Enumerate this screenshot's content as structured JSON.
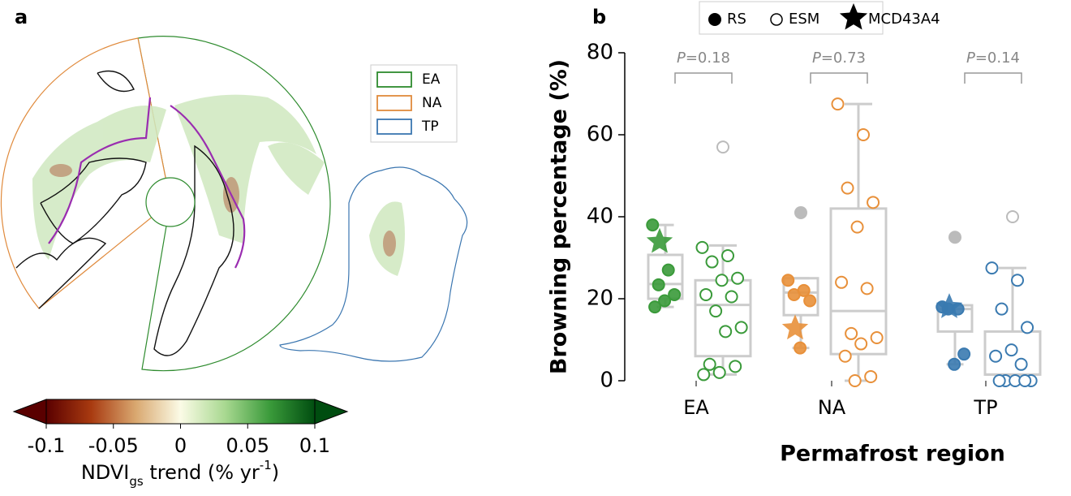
{
  "chart_data": [
    {
      "type": "map",
      "panel_label": "a",
      "legend": [
        {
          "name": "EA",
          "color": "#2e8b2e"
        },
        {
          "name": "NA",
          "color": "#e08a3c"
        },
        {
          "name": "TP",
          "color": "#3b76b0"
        }
      ],
      "colorbar": {
        "xlim": [
          -0.1,
          0.1
        ],
        "xticks": [
          -0.1,
          -0.05,
          0,
          0.05,
          0.1
        ],
        "colors": [
          "#5a0000",
          "#a83a10",
          "#d9a870",
          "#fbfbe6",
          "#a8d890",
          "#3a9a3a",
          "#004d10"
        ],
        "label": {
          "base": "NDVI",
          "sub": "gs",
          "mid": " trend (% yr",
          "sup": "-1",
          "end": ")"
        }
      }
    },
    {
      "type": "box",
      "panel_label": "b",
      "ylabel": "Browning percentage (%)",
      "xlabel": "Permafrost region",
      "ylim": [
        0,
        80
      ],
      "yticks": [
        0,
        20,
        40,
        60,
        80
      ],
      "categories": [
        "EA",
        "NA",
        "TP"
      ],
      "colors": [
        "#3a9a3a",
        "#e8903a",
        "#3a7ab0"
      ],
      "flier_color": "#bbbbbb",
      "legend": {
        "rs": "RS",
        "esm": "ESM",
        "star": "MCD43A4"
      },
      "p_symbol": "P",
      "p_texts": [
        "=0.18",
        "=0.73",
        "=0.14"
      ],
      "rs": [
        {
          "q1": 20,
          "median": 23.6,
          "q3": 30.7,
          "whislo": 18,
          "whishi": 38,
          "points": [
            38,
            27,
            23.4,
            21,
            19.5,
            18
          ],
          "fliers": []
        },
        {
          "q1": 16,
          "median": 21.5,
          "q3": 25,
          "whislo": 8,
          "whishi": 25,
          "points": [
            24.5,
            22,
            21,
            19.5,
            8
          ],
          "fliers": [
            41
          ]
        },
        {
          "q1": 12,
          "median": 17.5,
          "q3": 18.4,
          "whislo": 4,
          "whishi": 18.4,
          "points": [
            18,
            17.5,
            17.5,
            6.5,
            4
          ],
          "fliers": [
            35
          ]
        }
      ],
      "esm": [
        {
          "q1": 6,
          "median": 18.5,
          "q3": 24.5,
          "whislo": 1.5,
          "whishi": 33,
          "points": [
            32.5,
            30.5,
            29,
            25,
            24.5,
            21,
            20.5,
            17,
            13,
            12,
            4,
            3.5,
            2,
            1.5
          ],
          "fliers": [
            57
          ]
        },
        {
          "q1": 6.5,
          "median": 17,
          "q3": 42,
          "whislo": 0,
          "whishi": 67.5,
          "points": [
            67.5,
            60,
            47,
            43.5,
            37.5,
            24,
            22.5,
            11.5,
            10.5,
            9,
            6,
            1,
            0
          ],
          "fliers": []
        },
        {
          "q1": 1.5,
          "median": 1.5,
          "q3": 12,
          "whislo": 0,
          "whishi": 27.5,
          "points": [
            27.5,
            24.5,
            17.5,
            13,
            7.5,
            6,
            4,
            0,
            0,
            0,
            0,
            0
          ],
          "fliers": [
            40
          ]
        }
      ],
      "mcd43a4": [
        33.9,
        12.8,
        18
      ]
    }
  ]
}
